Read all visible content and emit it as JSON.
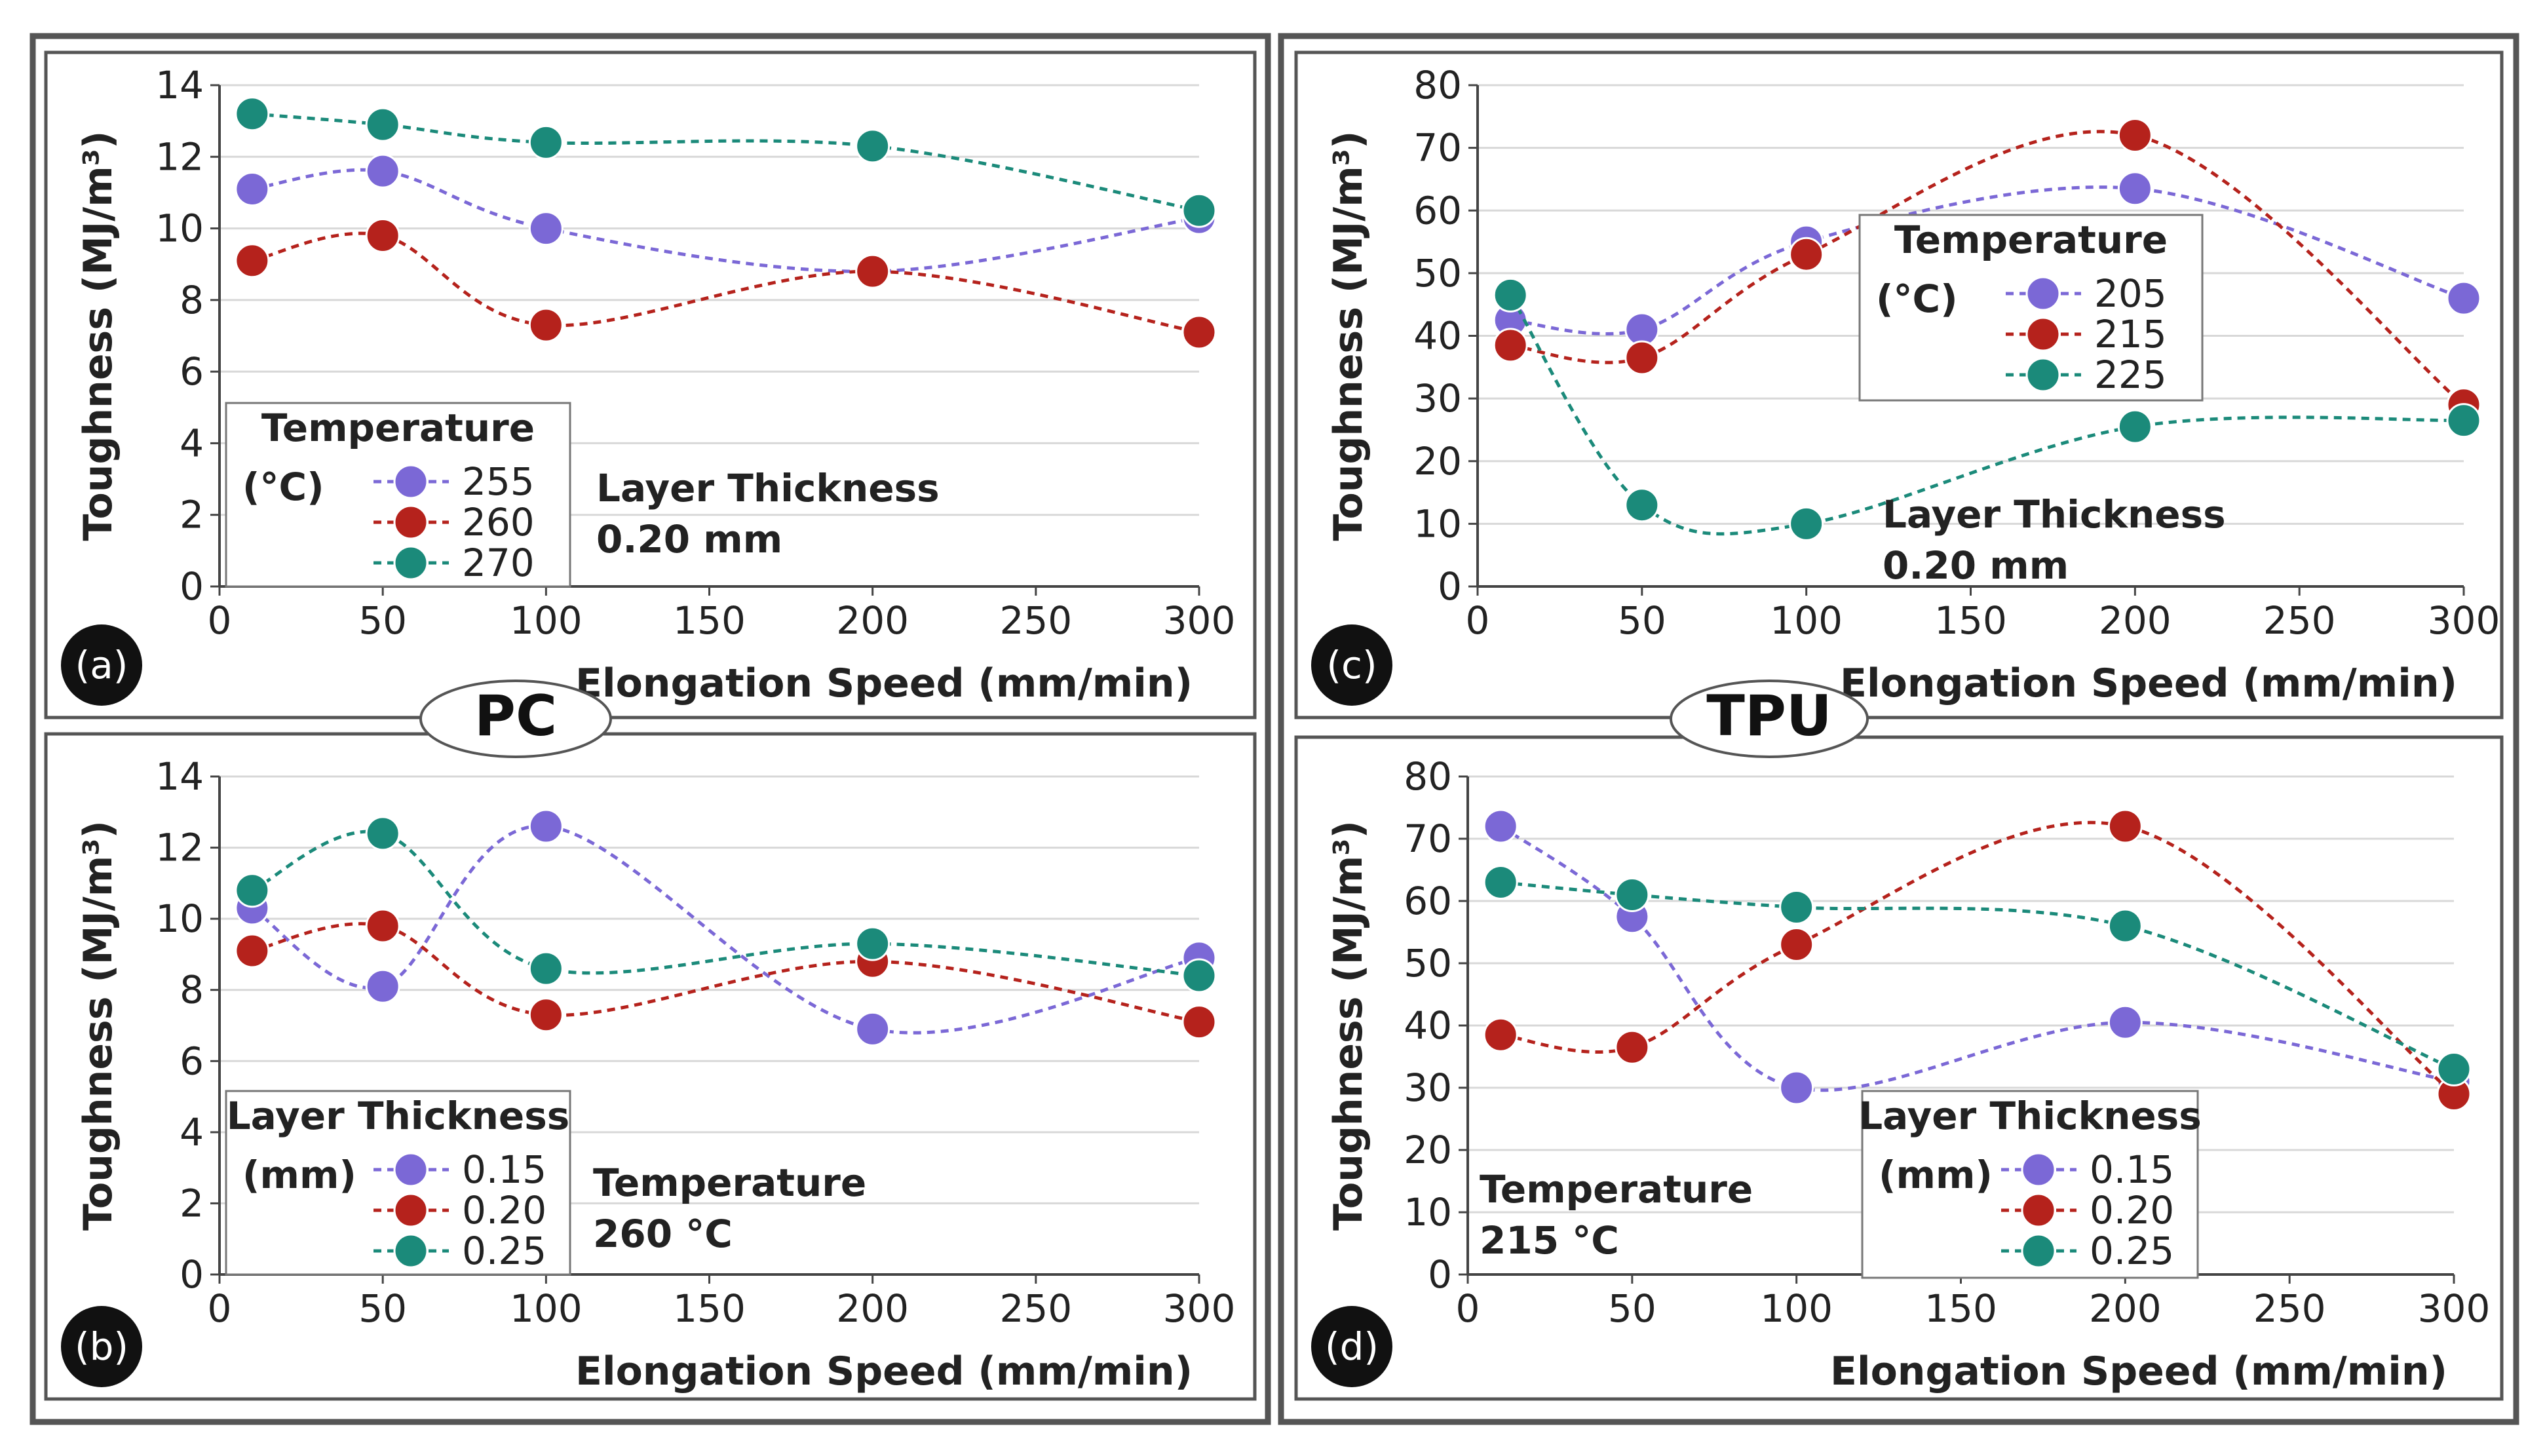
{
  "colors": {
    "purple": "#7b68d6",
    "red": "#b5221c",
    "teal": "#1b8a7a",
    "grid": "#d8d8d8",
    "frame": "#555555"
  },
  "group_labels": {
    "left": "PC",
    "right": "TPU"
  },
  "chart_data": [
    {
      "id": "a",
      "type": "line",
      "panel_label": "(a)",
      "xlabel": "Elongation Speed (mm/min)",
      "ylabel": "Toughness (MJ/m³)",
      "xlim": [
        0,
        300
      ],
      "ylim": [
        0,
        14
      ],
      "xticks": [
        0,
        50,
        100,
        150,
        200,
        250,
        300
      ],
      "yticks": [
        0,
        2,
        4,
        6,
        8,
        10,
        12,
        14
      ],
      "x": [
        10,
        50,
        100,
        200,
        300
      ],
      "legend": {
        "title_line1": "Temperature",
        "title_line2": "(°C)",
        "position": "bottom-left"
      },
      "annotation": {
        "line1": "Layer Thickness",
        "line2": "0.20 mm"
      },
      "series": [
        {
          "name": "255",
          "color": "purple",
          "values": [
            11.1,
            11.6,
            10.0,
            8.8,
            10.3
          ]
        },
        {
          "name": "260",
          "color": "red",
          "values": [
            9.1,
            9.8,
            7.3,
            8.8,
            7.1
          ]
        },
        {
          "name": "270",
          "color": "teal",
          "values": [
            13.2,
            12.9,
            12.4,
            12.3,
            10.5
          ]
        }
      ]
    },
    {
      "id": "b",
      "type": "line",
      "panel_label": "(b)",
      "xlabel": "Elongation Speed (mm/min)",
      "ylabel": "Toughness (MJ/m³)",
      "xlim": [
        0,
        300
      ],
      "ylim": [
        0,
        14
      ],
      "xticks": [
        0,
        50,
        100,
        150,
        200,
        250,
        300
      ],
      "yticks": [
        0,
        2,
        4,
        6,
        8,
        10,
        12,
        14
      ],
      "x": [
        10,
        50,
        100,
        200,
        300
      ],
      "legend": {
        "title_line1": "Layer Thickness",
        "title_line2": "(mm)",
        "position": "bottom-left"
      },
      "annotation": {
        "line1": "Temperature",
        "line2": "260 °C"
      },
      "series": [
        {
          "name": "0.15",
          "color": "purple",
          "values": [
            10.3,
            8.1,
            12.6,
            6.9,
            8.9
          ]
        },
        {
          "name": "0.20",
          "color": "red",
          "values": [
            9.1,
            9.8,
            7.3,
            8.8,
            7.1
          ]
        },
        {
          "name": "0.25",
          "color": "teal",
          "values": [
            10.8,
            12.4,
            8.6,
            9.3,
            8.4
          ]
        }
      ]
    },
    {
      "id": "c",
      "type": "line",
      "panel_label": "(c)",
      "xlabel": "Elongation Speed (mm/min)",
      "ylabel": "Toughness (MJ/m³)",
      "xlim": [
        0,
        300
      ],
      "ylim": [
        0,
        80
      ],
      "xticks": [
        0,
        50,
        100,
        150,
        200,
        250,
        300
      ],
      "yticks": [
        0,
        10,
        20,
        30,
        40,
        50,
        60,
        70,
        80
      ],
      "x": [
        10,
        50,
        100,
        200,
        300
      ],
      "legend": {
        "title_line1": "Temperature",
        "title_line2": "(°C)",
        "position": "top-center"
      },
      "annotation": {
        "line1": "Layer Thickness",
        "line2": "0.20 mm"
      },
      "series": [
        {
          "name": "205",
          "color": "purple",
          "values": [
            42.5,
            41,
            55,
            63.5,
            46
          ]
        },
        {
          "name": "215",
          "color": "red",
          "values": [
            38.5,
            36.5,
            53,
            72,
            29
          ]
        },
        {
          "name": "225",
          "color": "teal",
          "values": [
            46.5,
            13,
            10,
            25.5,
            26.5
          ]
        }
      ]
    },
    {
      "id": "d",
      "type": "line",
      "panel_label": "(d)",
      "xlabel": "Elongation Speed (mm/min)",
      "ylabel": "Toughness (MJ/m³)",
      "xlim": [
        0,
        300
      ],
      "ylim": [
        0,
        80
      ],
      "xticks": [
        0,
        50,
        100,
        150,
        200,
        250,
        300
      ],
      "yticks": [
        0,
        10,
        20,
        30,
        40,
        50,
        60,
        70,
        80
      ],
      "x": [
        10,
        50,
        100,
        200,
        300
      ],
      "legend": {
        "title_line1": "Layer Thickness",
        "title_line2": "(mm)",
        "position": "bottom-right"
      },
      "annotation": {
        "line1": "Temperature",
        "line2": "215 °C"
      },
      "series": [
        {
          "name": "0.15",
          "color": "purple",
          "values": [
            72,
            57.5,
            30,
            40.5,
            31
          ]
        },
        {
          "name": "0.20",
          "color": "red",
          "values": [
            38.5,
            36.5,
            53,
            72,
            29
          ]
        },
        {
          "name": "0.25",
          "color": "teal",
          "values": [
            63,
            61,
            59,
            56,
            33
          ]
        }
      ]
    }
  ]
}
